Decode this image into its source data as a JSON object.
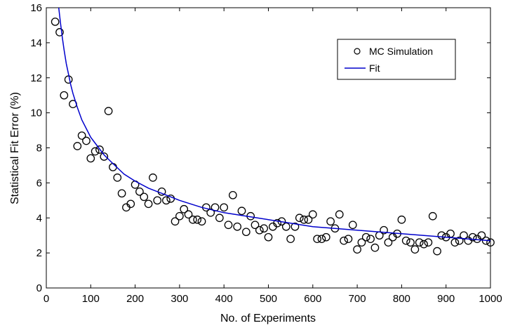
{
  "chart_data": {
    "type": "scatter",
    "xlabel": "No. of Experiments",
    "ylabel": "Statistical Fit Error (%)",
    "xlim": [
      0,
      1000
    ],
    "ylim": [
      0,
      16
    ],
    "xticks": [
      0,
      100,
      200,
      300,
      400,
      500,
      600,
      700,
      800,
      900,
      1000
    ],
    "yticks": [
      0,
      2,
      4,
      6,
      8,
      10,
      12,
      14,
      16
    ],
    "grid": false,
    "legend_position": "top-right",
    "series": [
      {
        "name": "MC Simulation",
        "marker": "open-circle",
        "color": "#000000",
        "x": [
          20,
          30,
          40,
          50,
          60,
          70,
          80,
          90,
          100,
          110,
          120,
          130,
          140,
          150,
          160,
          170,
          180,
          190,
          200,
          210,
          220,
          230,
          240,
          250,
          260,
          270,
          280,
          290,
          300,
          310,
          320,
          330,
          340,
          350,
          360,
          370,
          380,
          390,
          400,
          410,
          420,
          430,
          440,
          450,
          460,
          470,
          480,
          490,
          500,
          510,
          520,
          530,
          540,
          550,
          560,
          570,
          580,
          590,
          600,
          610,
          620,
          630,
          640,
          650,
          660,
          670,
          680,
          690,
          700,
          710,
          720,
          730,
          740,
          750,
          760,
          770,
          780,
          790,
          800,
          810,
          820,
          830,
          840,
          850,
          860,
          870,
          880,
          890,
          900,
          910,
          920,
          930,
          940,
          950,
          960,
          970,
          980,
          990,
          1000
        ],
        "y": [
          15.2,
          14.6,
          11.0,
          11.9,
          10.5,
          8.1,
          8.7,
          8.4,
          7.4,
          7.8,
          7.9,
          7.5,
          10.1,
          6.9,
          6.3,
          5.4,
          4.6,
          4.8,
          5.9,
          5.5,
          5.2,
          4.8,
          6.3,
          5.0,
          5.5,
          5.0,
          5.1,
          3.8,
          4.1,
          4.5,
          4.2,
          3.9,
          3.9,
          3.8,
          4.6,
          4.3,
          4.6,
          4.0,
          4.6,
          3.6,
          5.3,
          3.5,
          4.4,
          3.2,
          4.1,
          3.6,
          3.3,
          3.4,
          2.9,
          3.5,
          3.7,
          3.8,
          3.5,
          2.8,
          3.5,
          4.0,
          3.9,
          3.9,
          4.2,
          2.8,
          2.8,
          2.9,
          3.8,
          3.4,
          4.2,
          2.7,
          2.8,
          3.6,
          2.2,
          2.6,
          2.9,
          2.8,
          2.3,
          3.0,
          3.3,
          2.6,
          2.9,
          3.1,
          3.9,
          2.7,
          2.6,
          2.2,
          2.6,
          2.5,
          2.6,
          4.1,
          2.1,
          3.0,
          2.9,
          3.1,
          2.6,
          2.7,
          3.0,
          2.7,
          2.9,
          2.8,
          3.0,
          2.7,
          2.6
        ]
      },
      {
        "name": "Fit",
        "type": "line",
        "color": "#0000cc",
        "x": [
          28,
          32,
          36,
          40,
          45,
          50,
          55,
          60,
          70,
          80,
          90,
          100,
          115,
          130,
          150,
          175,
          200,
          230,
          260,
          300,
          350,
          400,
          450,
          500,
          550,
          600,
          650,
          700,
          750,
          800,
          850,
          900,
          950,
          1000
        ],
        "y": [
          16.0,
          15.1,
          14.3,
          13.6,
          12.8,
          12.2,
          11.6,
          11.1,
          10.3,
          9.6,
          9.1,
          8.6,
          8.1,
          7.6,
          7.1,
          6.5,
          6.1,
          5.7,
          5.4,
          5.0,
          4.6,
          4.3,
          4.1,
          3.9,
          3.7,
          3.5,
          3.4,
          3.3,
          3.2,
          3.1,
          3.0,
          2.9,
          2.8,
          2.7
        ]
      }
    ]
  }
}
